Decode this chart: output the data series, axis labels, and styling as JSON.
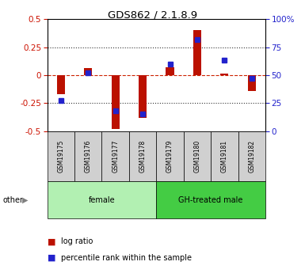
{
  "title": "GDS862 / 2.1.8.9",
  "samples": [
    "GSM19175",
    "GSM19176",
    "GSM19177",
    "GSM19178",
    "GSM19179",
    "GSM19180",
    "GSM19181",
    "GSM19182"
  ],
  "log_ratio": [
    -0.17,
    0.065,
    -0.48,
    -0.38,
    0.07,
    0.4,
    0.015,
    -0.14
  ],
  "percentile_rank": [
    27,
    52,
    18,
    15,
    60,
    82,
    63,
    47
  ],
  "ylim_left": [
    -0.5,
    0.5
  ],
  "ylim_right": [
    0,
    100
  ],
  "yticks_left": [
    -0.5,
    -0.25,
    0,
    0.25,
    0.5
  ],
  "yticks_right": [
    0,
    25,
    50,
    75,
    100
  ],
  "groups": [
    {
      "label": "female",
      "start": 0,
      "end": 3,
      "color": "#b2f0b2"
    },
    {
      "label": "GH-treated male",
      "start": 4,
      "end": 7,
      "color": "#44cc44"
    }
  ],
  "bar_color": "#bb1100",
  "dot_color": "#2222cc",
  "zero_line_color": "#cc2200",
  "dotted_line_color": "#333333",
  "plot_bg": "#ffffff",
  "left_label_color": "#cc1100",
  "right_label_color": "#2222cc",
  "sample_box_color": "#d0d0d0",
  "bar_width": 0.3,
  "dot_markersize": 4.5
}
